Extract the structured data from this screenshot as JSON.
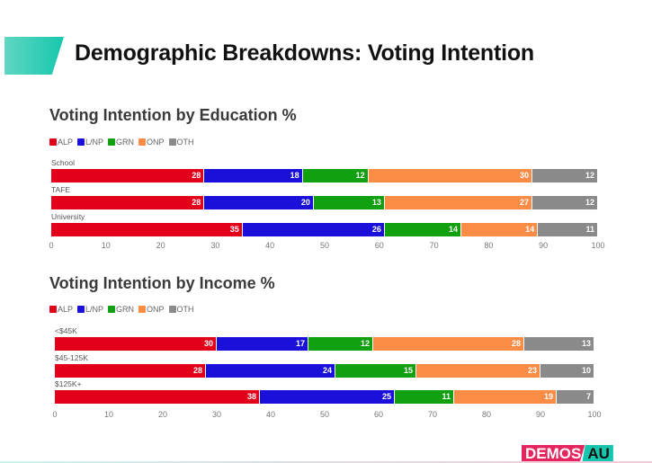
{
  "title": "Demographic Breakdowns: Voting Intention",
  "logo": {
    "left": "DEMOS",
    "right": "AU"
  },
  "chart_data": [
    {
      "type": "bar",
      "stacked": true,
      "orientation": "horizontal",
      "title": "Voting Intention by Education %",
      "categories": [
        "School",
        "TAFE",
        "University"
      ],
      "series": [
        {
          "name": "ALP",
          "color": "#e3001b",
          "values": [
            28,
            28,
            35
          ]
        },
        {
          "name": "L/NP",
          "color": "#1a10d9",
          "values": [
            18,
            20,
            26
          ]
        },
        {
          "name": "GRN",
          "color": "#10a010",
          "values": [
            12,
            13,
            14
          ]
        },
        {
          "name": "ONP",
          "color": "#fa8c45",
          "values": [
            30,
            27,
            14
          ]
        },
        {
          "name": "OTH",
          "color": "#8a8a8a",
          "values": [
            12,
            12,
            11
          ]
        }
      ],
      "xlim": [
        0,
        100
      ],
      "xticks": [
        "0",
        "10",
        "20",
        "30",
        "40",
        "50",
        "60",
        "70",
        "80",
        "90",
        "100"
      ],
      "legend": "top-left"
    },
    {
      "type": "bar",
      "stacked": true,
      "orientation": "horizontal",
      "title": "Voting Intention by Income %",
      "categories": [
        "<$45K",
        "$45-125K",
        "$125K+"
      ],
      "series": [
        {
          "name": "ALP",
          "color": "#e3001b",
          "values": [
            30,
            28,
            38
          ]
        },
        {
          "name": "L/NP",
          "color": "#1a10d9",
          "values": [
            17,
            24,
            25
          ]
        },
        {
          "name": "GRN",
          "color": "#10a010",
          "values": [
            12,
            15,
            11
          ]
        },
        {
          "name": "ONP",
          "color": "#fa8c45",
          "values": [
            28,
            23,
            19
          ]
        },
        {
          "name": "OTH",
          "color": "#8a8a8a",
          "values": [
            13,
            10,
            7
          ]
        }
      ],
      "xlim": [
        0,
        100
      ],
      "xticks": [
        "0",
        "10",
        "20",
        "30",
        "40",
        "50",
        "60",
        "70",
        "80",
        "90",
        "100"
      ],
      "legend": "top-left"
    }
  ]
}
